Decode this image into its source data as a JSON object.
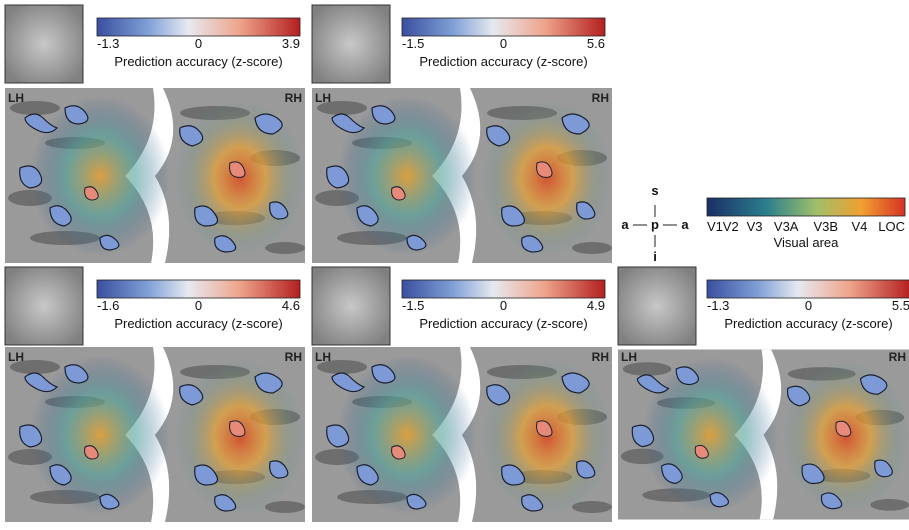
{
  "panels": [
    {
      "colorbar": {
        "min": "-1.3",
        "mid": "0",
        "max": "3.9",
        "label": "Prediction accuracy (z-score)"
      },
      "left": "LH",
      "right": "RH"
    },
    {
      "colorbar": {
        "min": "-1.5",
        "mid": "0",
        "max": "5.6",
        "label": "Prediction accuracy (z-score)"
      },
      "left": "LH",
      "right": "RH"
    },
    {
      "colorbar": {
        "min": "-1.6",
        "mid": "0",
        "max": "4.6",
        "label": "Prediction accuracy (z-score)"
      },
      "left": "LH",
      "right": "RH"
    },
    {
      "colorbar": {
        "min": "-1.5",
        "mid": "0",
        "max": "4.9",
        "label": "Prediction accuracy (z-score)"
      },
      "left": "LH",
      "right": "RH"
    },
    {
      "colorbar": {
        "min": "-1.3",
        "mid": "0",
        "max": "5.5",
        "label": "Prediction accuracy (z-score)"
      },
      "left": "LH",
      "right": "RH"
    }
  ],
  "compass": {
    "up": "s",
    "left": "a",
    "center": "p",
    "right": "a",
    "down": "i"
  },
  "visual_areas": {
    "labels": [
      "V1",
      "V2",
      "V3",
      "V3A",
      "V3B",
      "V4",
      "LOC"
    ],
    "title": "Visual area"
  }
}
